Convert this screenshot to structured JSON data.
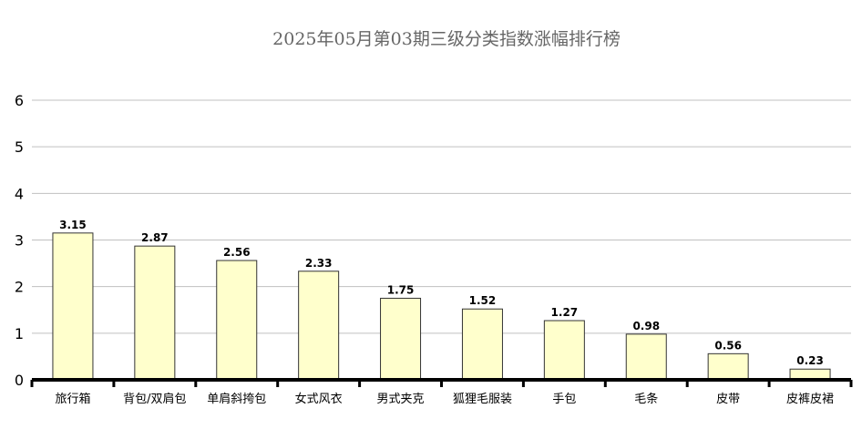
{
  "chart_data": {
    "type": "bar",
    "title": "2025年05月第03期三级分类指数涨幅排行榜",
    "xlabel": "",
    "ylabel": "",
    "ylim": [
      0,
      6
    ],
    "yticks": [
      0,
      1,
      2,
      3,
      4,
      5,
      6
    ],
    "grid": true,
    "categories": [
      "旅行箱",
      "背包/双肩包",
      "单肩斜挎包",
      "女式风衣",
      "男式夹克",
      "狐狸毛服装",
      "手包",
      "毛条",
      "皮带",
      "皮裤皮裙"
    ],
    "values": [
      3.15,
      2.87,
      2.56,
      2.33,
      1.75,
      1.52,
      1.27,
      0.98,
      0.56,
      0.23
    ],
    "data_labels": [
      "3.15",
      "2.87",
      "2.56",
      "2.33",
      "1.75",
      "1.52",
      "1.27",
      "0.98",
      "0.56",
      "0.23"
    ],
    "colors": {
      "bar_fill": "#ffffcc",
      "bar_stroke": "#333333",
      "grid": "#c0c0c0",
      "axis": "#000000"
    }
  }
}
